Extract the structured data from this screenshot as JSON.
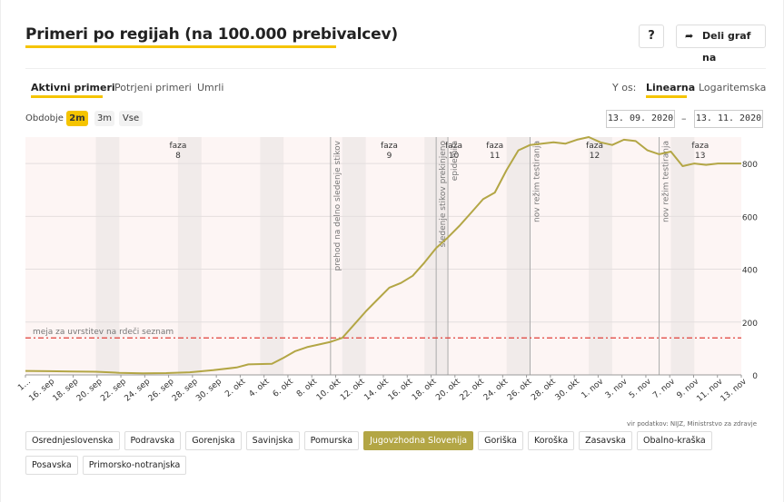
{
  "header": {
    "title": "Primeri po regijah (na 100.000 prebivalcev)",
    "help_label": "?",
    "share_label": "Deli graf na"
  },
  "tabs": [
    {
      "label": "Aktivni primeri",
      "active": true
    },
    {
      "label": "Potrjeni primeri",
      "active": false
    },
    {
      "label": "Umrli",
      "active": false
    }
  ],
  "y_axis_toggle": {
    "label": "Y os:",
    "options": [
      {
        "label": "Linearna",
        "active": true
      },
      {
        "label": "Logaritemska",
        "active": false
      }
    ]
  },
  "period": {
    "label": "Obdobje",
    "options": [
      {
        "label": "2m",
        "active": true
      },
      {
        "label": "3m",
        "active": false
      },
      {
        "label": "Vse",
        "active": false
      }
    ],
    "date_from": "13. 09. 2020",
    "date_separator": "–",
    "date_to": "13. 11. 2020"
  },
  "chart_data": {
    "type": "line",
    "title": "",
    "xlabel": "",
    "ylabel": "",
    "start_date": "2020-09-13",
    "end_date": "2020-11-13",
    "ylim": [
      0,
      900
    ],
    "yticks": [
      0,
      200,
      400,
      600,
      800
    ],
    "grid": true,
    "series_color": "#b3a645",
    "x_tick_labels": [
      "1…",
      "16. sep",
      "18. sep",
      "20. sep",
      "22. sep",
      "24. sep",
      "26. sep",
      "28. sep",
      "30. sep",
      "2. okt",
      "4. okt",
      "6. okt",
      "8. okt",
      "10. okt",
      "12. okt",
      "14. okt",
      "16. okt",
      "18. okt",
      "20. okt",
      "22. okt",
      "24. okt",
      "26. okt",
      "28. okt",
      "30. okt",
      "1. nov",
      "3. nov",
      "5. nov",
      "7. nov",
      "9. nov",
      "11. nov",
      "13. nov"
    ],
    "series": [
      {
        "name": "Jugovzhodna Slovenija",
        "x": [
          "2020-09-13",
          "2020-09-15",
          "2020-09-17",
          "2020-09-19",
          "2020-09-21",
          "2020-09-23",
          "2020-09-25",
          "2020-09-27",
          "2020-09-29",
          "2020-10-01",
          "2020-10-02",
          "2020-10-04",
          "2020-10-05",
          "2020-10-06",
          "2020-10-07",
          "2020-10-08",
          "2020-10-09",
          "2020-10-10",
          "2020-10-11",
          "2020-10-12",
          "2020-10-13",
          "2020-10-14",
          "2020-10-15",
          "2020-10-16",
          "2020-10-17",
          "2020-10-18",
          "2020-10-19",
          "2020-10-20",
          "2020-10-21",
          "2020-10-22",
          "2020-10-23",
          "2020-10-24",
          "2020-10-25",
          "2020-10-26",
          "2020-10-27",
          "2020-10-28",
          "2020-10-29",
          "2020-10-30",
          "2020-10-31",
          "2020-11-01",
          "2020-11-02",
          "2020-11-03",
          "2020-11-04",
          "2020-11-05",
          "2020-11-06",
          "2020-11-07",
          "2020-11-08",
          "2020-11-09",
          "2020-11-10",
          "2020-11-11",
          "2020-11-12",
          "2020-11-13"
        ],
        "y": [
          15,
          14,
          13,
          12,
          8,
          6,
          7,
          10,
          18,
          28,
          40,
          42,
          65,
          90,
          105,
          115,
          125,
          140,
          190,
          240,
          285,
          330,
          348,
          375,
          425,
          480,
          520,
          565,
          615,
          665,
          690,
          775,
          850,
          870,
          875,
          880,
          875,
          890,
          900,
          880,
          870,
          890,
          885,
          850,
          835,
          845,
          790,
          800,
          795,
          800,
          800,
          800
        ]
      }
    ],
    "threshold": {
      "label": "meja za uvrstitev na rdeči seznam",
      "value": 140,
      "color": "#e0403a"
    },
    "phases": [
      {
        "label": "faza\n8",
        "start": "2020-09-13",
        "end": "2020-10-09"
      },
      {
        "label": "faza\n9",
        "start": "2020-10-09",
        "end": "2020-10-19"
      },
      {
        "label": "faza\n10",
        "start": "2020-10-19",
        "end": "2020-10-20"
      },
      {
        "label": "faza\n11",
        "start": "2020-10-20",
        "end": "2020-10-26"
      },
      {
        "label": "faza\n12",
        "start": "2020-10-26",
        "end": "2020-11-06"
      },
      {
        "label": "faza\n13",
        "start": "2020-11-06",
        "end": "2020-11-13"
      }
    ],
    "event_lines": [
      {
        "date": "2020-10-09",
        "label": "prehod na delno sledenje stikov"
      },
      {
        "date": "2020-10-18",
        "label": "sledenje stikov prekinjeno"
      },
      {
        "date": "2020-10-19",
        "label": "epidemija"
      },
      {
        "date": "2020-10-26",
        "label": "nov režim testiranja"
      },
      {
        "date": "2020-11-06",
        "label": "nov režim testiranja"
      }
    ]
  },
  "source_note": "vir podatkov: NIJZ, Ministrstvo za zdravje",
  "regions": [
    {
      "label": "Osrednjeslovenska",
      "active": false
    },
    {
      "label": "Podravska",
      "active": false
    },
    {
      "label": "Gorenjska",
      "active": false
    },
    {
      "label": "Savinjska",
      "active": false
    },
    {
      "label": "Pomurska",
      "active": false
    },
    {
      "label": "Jugovzhodna Slovenija",
      "active": true
    },
    {
      "label": "Goriška",
      "active": false
    },
    {
      "label": "Koroška",
      "active": false
    },
    {
      "label": "Zasavska",
      "active": false
    },
    {
      "label": "Obalno-kraška",
      "active": false
    },
    {
      "label": "Posavska",
      "active": false
    },
    {
      "label": "Primorsko-notranjska",
      "active": false
    }
  ]
}
